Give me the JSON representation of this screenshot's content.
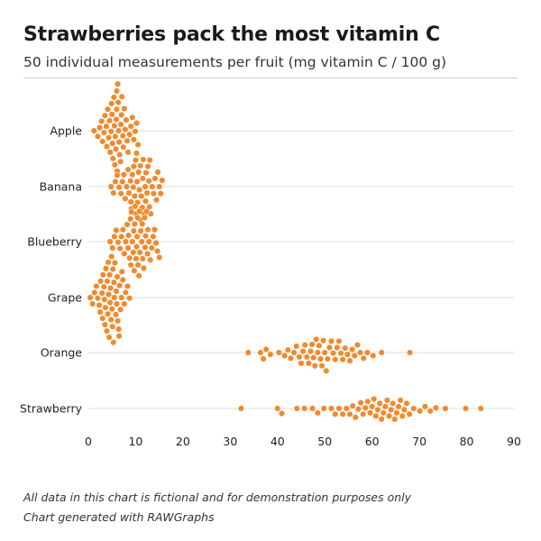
{
  "header": {
    "title": "Strawberries pack the most vitamin C",
    "subtitle": "50 individual measurements per fruit (mg vitamin C / 100 g)"
  },
  "footer": {
    "note": "All data in this chart is fictional and for demonstration purposes only",
    "credit": "Chart generated with RAWGraphs"
  },
  "chart_data": {
    "type": "scatter",
    "subtype": "beeswarm",
    "xlim": [
      0,
      90
    ],
    "xticks": [
      0,
      10,
      20,
      30,
      40,
      50,
      60,
      70,
      80,
      90
    ],
    "grid": true,
    "point_color": "#f08a2d",
    "categories": [
      "Apple",
      "Banana",
      "Blueberry",
      "Grape",
      "Orange",
      "Strawberry"
    ],
    "series": [
      {
        "name": "Apple",
        "values": [
          1.2,
          2.0,
          2.4,
          2.8,
          3.0,
          3.3,
          3.5,
          3.8,
          3.9,
          4.1,
          4.3,
          4.5,
          4.6,
          4.8,
          4.9,
          5.0,
          5.1,
          5.2,
          5.4,
          5.5,
          5.6,
          5.7,
          5.8,
          5.9,
          6.0,
          6.0,
          6.1,
          6.2,
          6.3,
          6.4,
          6.5,
          6.6,
          6.8,
          6.9,
          7.0,
          7.1,
          7.3,
          7.4,
          7.6,
          7.8,
          8.0,
          8.2,
          8.4,
          8.7,
          9.0,
          9.3,
          9.6,
          9.9,
          10.2,
          10.5
        ]
      },
      {
        "name": "Banana",
        "values": [
          4.8,
          5.3,
          5.7,
          6.1,
          6.5,
          6.9,
          7.2,
          7.5,
          7.8,
          8.1,
          8.4,
          8.6,
          8.9,
          9.1,
          9.3,
          9.6,
          9.8,
          10.0,
          10.2,
          10.4,
          10.6,
          10.8,
          11.0,
          11.2,
          11.4,
          11.6,
          11.8,
          12.0,
          12.2,
          12.4,
          12.6,
          12.8,
          13.0,
          13.2,
          13.5,
          13.8,
          14.1,
          14.4,
          14.7,
          15.0,
          15.3,
          15.6,
          9.0,
          9.5,
          10.3,
          10.9,
          11.5,
          12.1,
          12.9,
          10.1
        ]
      },
      {
        "name": "Blueberry",
        "values": [
          4.6,
          5.1,
          5.5,
          5.9,
          6.3,
          6.7,
          7.0,
          7.3,
          7.6,
          7.9,
          8.2,
          8.4,
          8.7,
          8.9,
          9.1,
          9.3,
          9.5,
          9.7,
          9.9,
          10.1,
          10.3,
          10.5,
          10.7,
          10.9,
          11.1,
          11.3,
          11.5,
          11.7,
          11.9,
          12.1,
          12.3,
          12.5,
          12.8,
          13.1,
          13.4,
          13.7,
          14.0,
          14.3,
          14.6,
          15.0,
          8.5,
          9.0,
          9.6,
          10.2,
          10.8,
          11.4,
          12.0,
          12.6,
          9.8,
          10.4
        ]
      },
      {
        "name": "Grape",
        "values": [
          0.4,
          0.9,
          1.3,
          1.7,
          2.0,
          2.3,
          2.6,
          2.9,
          3.1,
          3.3,
          3.5,
          3.7,
          3.9,
          4.1,
          4.3,
          4.5,
          4.6,
          4.8,
          5.0,
          5.2,
          5.4,
          5.6,
          5.8,
          6.0,
          6.2,
          6.4,
          6.6,
          6.8,
          7.0,
          7.3,
          7.6,
          7.9,
          8.3,
          8.7,
          3.0,
          3.6,
          4.2,
          4.7,
          5.3,
          5.9,
          6.5,
          2.5,
          3.4,
          4.0,
          4.9,
          5.5,
          6.1,
          7.1,
          4.4,
          5.1
        ]
      },
      {
        "name": "Orange",
        "values": [
          33.8,
          36.4,
          37.0,
          37.6,
          38.5,
          40.3,
          41.5,
          42.2,
          42.8,
          43.5,
          44.0,
          44.6,
          45.0,
          45.4,
          45.8,
          46.2,
          46.6,
          47.0,
          47.3,
          47.6,
          47.9,
          48.2,
          48.5,
          48.8,
          49.1,
          49.4,
          49.7,
          50.0,
          50.3,
          50.6,
          51.0,
          51.4,
          51.8,
          52.2,
          52.6,
          53.0,
          53.4,
          53.8,
          54.3,
          54.8,
          55.3,
          55.8,
          56.3,
          56.9,
          57.5,
          58.2,
          59.0,
          60.2,
          62.0,
          68.0
        ]
      },
      {
        "name": "Strawberry",
        "values": [
          32.3,
          40.0,
          40.9,
          44.1,
          45.7,
          47.4,
          48.5,
          49.8,
          51.4,
          52.2,
          53.0,
          53.8,
          54.6,
          55.3,
          55.9,
          56.5,
          57.1,
          57.6,
          58.1,
          58.6,
          59.1,
          59.6,
          60.0,
          60.4,
          60.8,
          61.2,
          61.6,
          62.0,
          62.4,
          62.8,
          63.2,
          63.6,
          64.0,
          64.4,
          64.8,
          65.2,
          65.6,
          66.0,
          66.4,
          66.8,
          67.3,
          67.9,
          68.8,
          70.1,
          71.2,
          72.3,
          73.5,
          75.5,
          79.8,
          83.0
        ]
      }
    ]
  }
}
